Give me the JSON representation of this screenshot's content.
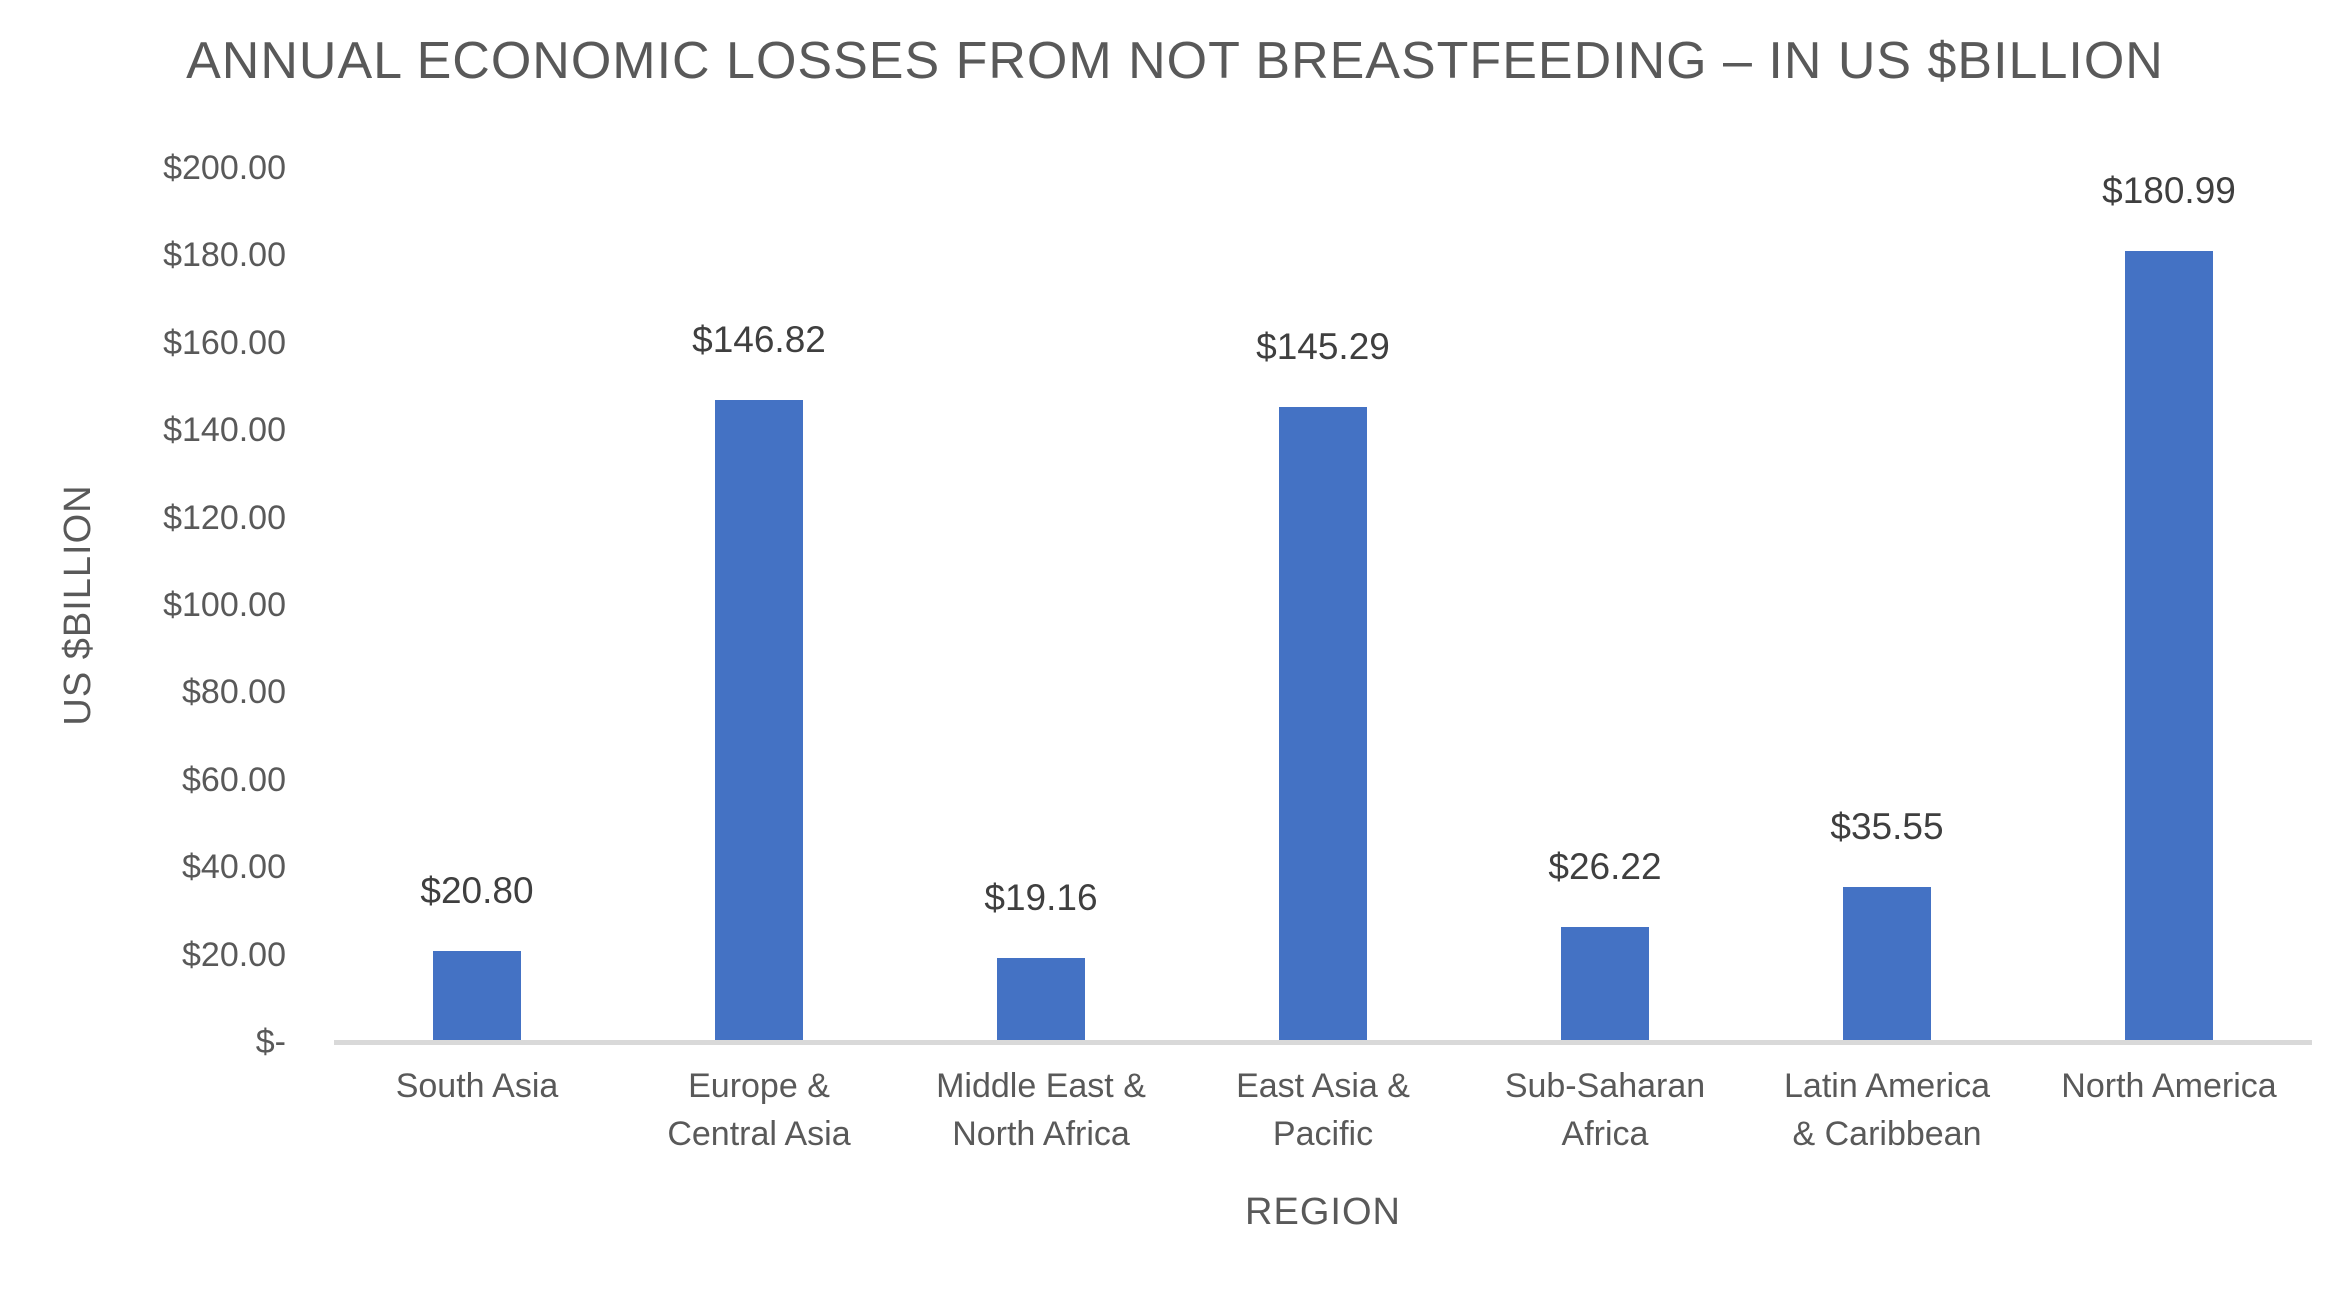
{
  "chart_data": {
    "type": "bar",
    "title": "ANNUAL ECONOMIC LOSSES FROM NOT BREASTFEEDING – IN US $BILLION",
    "xlabel": "REGION",
    "ylabel": "US $BILLION",
    "ylim": [
      0,
      200
    ],
    "grid": false,
    "legend": false,
    "categories": [
      "South Asia",
      "Europe & Central Asia",
      "Middle East & North Africa",
      "East Asia & Pacific",
      "Sub-Saharan Africa",
      "Latin America & Caribbean",
      "North America"
    ],
    "category_label_lines": [
      [
        "South Asia"
      ],
      [
        "Europe &",
        "Central Asia"
      ],
      [
        "Middle East &",
        "North Africa"
      ],
      [
        "East Asia &",
        "Pacific"
      ],
      [
        "Sub-Saharan",
        "Africa"
      ],
      [
        "Latin America",
        "& Caribbean"
      ],
      [
        "North America"
      ]
    ],
    "values": [
      20.8,
      146.82,
      19.16,
      145.29,
      26.22,
      35.55,
      180.99
    ],
    "data_labels": [
      "$20.80",
      "$146.82",
      "$19.16",
      "$145.29",
      "$26.22",
      "$35.55",
      "$180.99"
    ],
    "y_ticks": [
      {
        "value": 200,
        "label": "$200.00"
      },
      {
        "value": 180,
        "label": "$180.00"
      },
      {
        "value": 160,
        "label": "$160.00"
      },
      {
        "value": 140,
        "label": "$140.00"
      },
      {
        "value": 120,
        "label": "$120.00"
      },
      {
        "value": 100,
        "label": "$100.00"
      },
      {
        "value": 80,
        "label": "$80.00"
      },
      {
        "value": 60,
        "label": "$60.00"
      },
      {
        "value": 40,
        "label": "$40.00"
      },
      {
        "value": 20,
        "label": "$20.00"
      },
      {
        "value": 0,
        "label": "$-"
      }
    ]
  },
  "colors": {
    "bar": "#4472C4",
    "title_text": "#595959",
    "axis_text": "#595959",
    "data_label_text": "#3F3F3F",
    "axis_line": "#D9D9D9",
    "background": "#FFFFFF"
  }
}
